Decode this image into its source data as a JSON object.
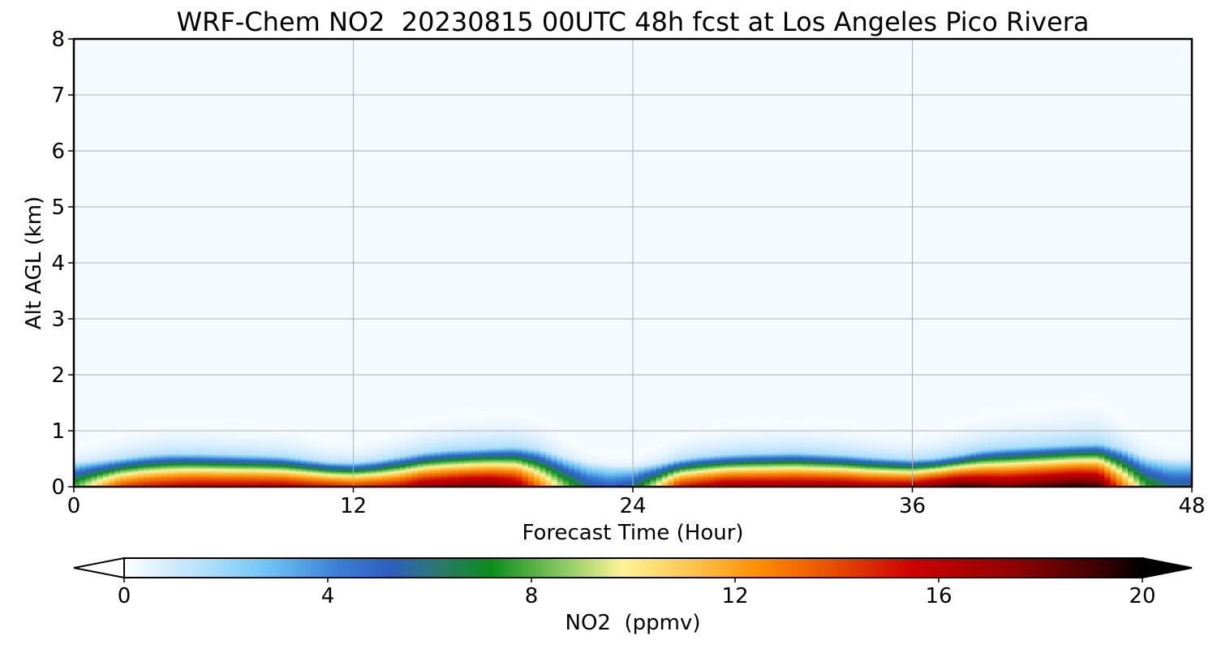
{
  "chart_data": {
    "type": "heatmap",
    "title": "WRF-Chem NO2  20230815 00UTC 48h fcst at Los Angeles Pico Rivera",
    "xlabel": "Forecast Time (Hour)",
    "ylabel": "Alt AGL (km)",
    "xlim": [
      0,
      48
    ],
    "ylim": [
      0,
      8
    ],
    "x_ticks": [
      "0",
      "12",
      "24",
      "36",
      "48"
    ],
    "y_ticks": [
      "0",
      "1",
      "2",
      "3",
      "4",
      "5",
      "6",
      "7",
      "8"
    ],
    "grid": true,
    "colorbar": {
      "label": "NO2  (ppmv)",
      "min": 0,
      "max": 20,
      "ticks": [
        "0",
        "4",
        "8",
        "12",
        "16",
        "20"
      ],
      "extend": "both",
      "orientation": "horizontal",
      "colors": [
        "#ffffff",
        "#e1f2fd",
        "#a7dcfa",
        "#6ec4f5",
        "#3a7fd5",
        "#2d5fbf",
        "#2a7a6a",
        "#0a8c1a",
        "#9ad06a",
        "#fff495",
        "#ffc24a",
        "#ff8c00",
        "#e64a00",
        "#cc0000",
        "#900000",
        "#3a0000",
        "#000000"
      ],
      "color_stops": [
        0,
        0.6,
        1.8,
        2.8,
        4.2,
        5.2,
        6.2,
        7.2,
        8.8,
        9.8,
        11.2,
        12.5,
        14.0,
        15.5,
        17.5,
        19.2,
        20
      ]
    },
    "field": {
      "x_hours": [
        0,
        1,
        2,
        3,
        4,
        5,
        6,
        7,
        8,
        9,
        10,
        11,
        12,
        13,
        14,
        15,
        16,
        17,
        18,
        19,
        20,
        21,
        22,
        23,
        24,
        25,
        26,
        27,
        28,
        29,
        30,
        31,
        32,
        33,
        34,
        35,
        36,
        37,
        38,
        39,
        40,
        41,
        42,
        43,
        44,
        45,
        46,
        47,
        48
      ],
      "mix_height_km": [
        0.45,
        0.48,
        0.52,
        0.57,
        0.6,
        0.6,
        0.59,
        0.58,
        0.57,
        0.55,
        0.5,
        0.45,
        0.44,
        0.48,
        0.55,
        0.62,
        0.66,
        0.68,
        0.7,
        0.72,
        0.68,
        0.55,
        0.45,
        0.4,
        0.38,
        0.42,
        0.5,
        0.55,
        0.58,
        0.6,
        0.61,
        0.62,
        0.6,
        0.58,
        0.55,
        0.52,
        0.5,
        0.52,
        0.58,
        0.66,
        0.7,
        0.72,
        0.74,
        0.76,
        0.78,
        0.7,
        0.55,
        0.5,
        0.5
      ],
      "surface_ppmv": [
        8,
        11,
        14,
        15,
        15.5,
        16,
        16,
        16,
        16,
        16,
        15.5,
        15,
        14.5,
        15,
        15.5,
        17,
        17.5,
        18,
        18,
        17,
        13,
        9,
        6,
        5,
        6,
        10,
        15,
        16,
        17,
        17,
        17,
        17,
        17,
        17,
        16.5,
        16.5,
        16.5,
        18,
        19,
        18.5,
        18,
        18.5,
        19,
        19.5,
        19,
        13,
        8,
        6,
        6
      ]
    }
  }
}
